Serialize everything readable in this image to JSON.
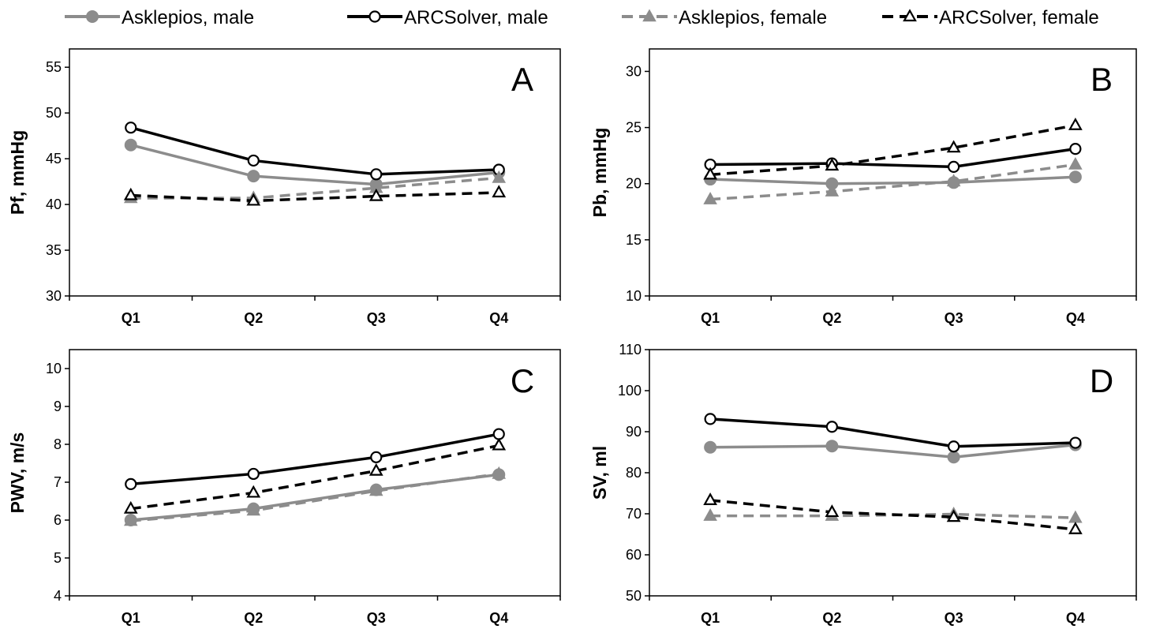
{
  "legend": [
    {
      "label": "Asklepios, male",
      "color": "#8c8c8c",
      "dash": "solid",
      "marker": "circle-filled"
    },
    {
      "label": "ARCSolver, male",
      "color": "#000000",
      "dash": "solid",
      "marker": "circle-open"
    },
    {
      "label": "Asklepios, female",
      "color": "#8c8c8c",
      "dash": "dashed",
      "marker": "triangle-filled"
    },
    {
      "label": "ARCSolver, female",
      "color": "#000000",
      "dash": "dashed",
      "marker": "triangle-open"
    }
  ],
  "chart_data": [
    {
      "type": "line",
      "panel": "A",
      "title": "",
      "xlabel": "",
      "ylabel": "Pf, mmHg",
      "categories": [
        "Q1",
        "Q2",
        "Q3",
        "Q4"
      ],
      "ylim": [
        30,
        57
      ],
      "yticks": [
        30,
        35,
        40,
        45,
        50,
        55
      ],
      "grid": false,
      "series": [
        {
          "name": "Asklepios, male",
          "values": [
            46.5,
            43.1,
            42.2,
            43.5
          ]
        },
        {
          "name": "ARCSolver, male",
          "values": [
            48.4,
            44.8,
            43.3,
            43.8
          ]
        },
        {
          "name": "Asklepios, female",
          "values": [
            40.7,
            40.7,
            41.8,
            42.9
          ]
        },
        {
          "name": "ARCSolver, female",
          "values": [
            41.0,
            40.4,
            40.9,
            41.3
          ]
        }
      ]
    },
    {
      "type": "line",
      "panel": "B",
      "title": "",
      "xlabel": "",
      "ylabel": "Pb, mmHg",
      "categories": [
        "Q1",
        "Q2",
        "Q3",
        "Q4"
      ],
      "ylim": [
        10,
        32
      ],
      "yticks": [
        10,
        15,
        20,
        25,
        30
      ],
      "grid": false,
      "series": [
        {
          "name": "Asklepios, male",
          "values": [
            20.4,
            20.0,
            20.1,
            20.6
          ]
        },
        {
          "name": "ARCSolver, male",
          "values": [
            21.7,
            21.8,
            21.5,
            23.1
          ]
        },
        {
          "name": "Asklepios, female",
          "values": [
            18.6,
            19.3,
            20.2,
            21.7
          ]
        },
        {
          "name": "ARCSolver, female",
          "values": [
            20.8,
            21.6,
            23.2,
            25.2
          ]
        }
      ]
    },
    {
      "type": "line",
      "panel": "C",
      "title": "",
      "xlabel": "",
      "ylabel": "PWV, m/s",
      "categories": [
        "Q1",
        "Q2",
        "Q3",
        "Q4"
      ],
      "ylim": [
        4,
        10.5
      ],
      "yticks": [
        4,
        5,
        6,
        7,
        8,
        9,
        10
      ],
      "grid": false,
      "series": [
        {
          "name": "Asklepios, male",
          "values": [
            6.0,
            6.3,
            6.8,
            7.2
          ]
        },
        {
          "name": "ARCSolver, male",
          "values": [
            6.95,
            7.22,
            7.66,
            8.27
          ]
        },
        {
          "name": "Asklepios, female",
          "values": [
            5.98,
            6.25,
            6.77,
            7.22
          ]
        },
        {
          "name": "ARCSolver, female",
          "values": [
            6.3,
            6.72,
            7.3,
            7.97
          ]
        }
      ]
    },
    {
      "type": "line",
      "panel": "D",
      "title": "",
      "xlabel": "",
      "ylabel": "SV, ml",
      "categories": [
        "Q1",
        "Q2",
        "Q3",
        "Q4"
      ],
      "ylim": [
        50,
        110
      ],
      "yticks": [
        50,
        60,
        70,
        80,
        90,
        100,
        110
      ],
      "grid": false,
      "series": [
        {
          "name": "Asklepios, male",
          "values": [
            86.2,
            86.5,
            83.8,
            86.8
          ]
        },
        {
          "name": "ARCSolver, male",
          "values": [
            93.1,
            91.2,
            86.4,
            87.3
          ]
        },
        {
          "name": "Asklepios, female",
          "values": [
            69.5,
            69.5,
            69.9,
            69.0
          ]
        },
        {
          "name": "ARCSolver, female",
          "values": [
            73.3,
            70.4,
            69.2,
            66.2
          ]
        }
      ]
    }
  ]
}
